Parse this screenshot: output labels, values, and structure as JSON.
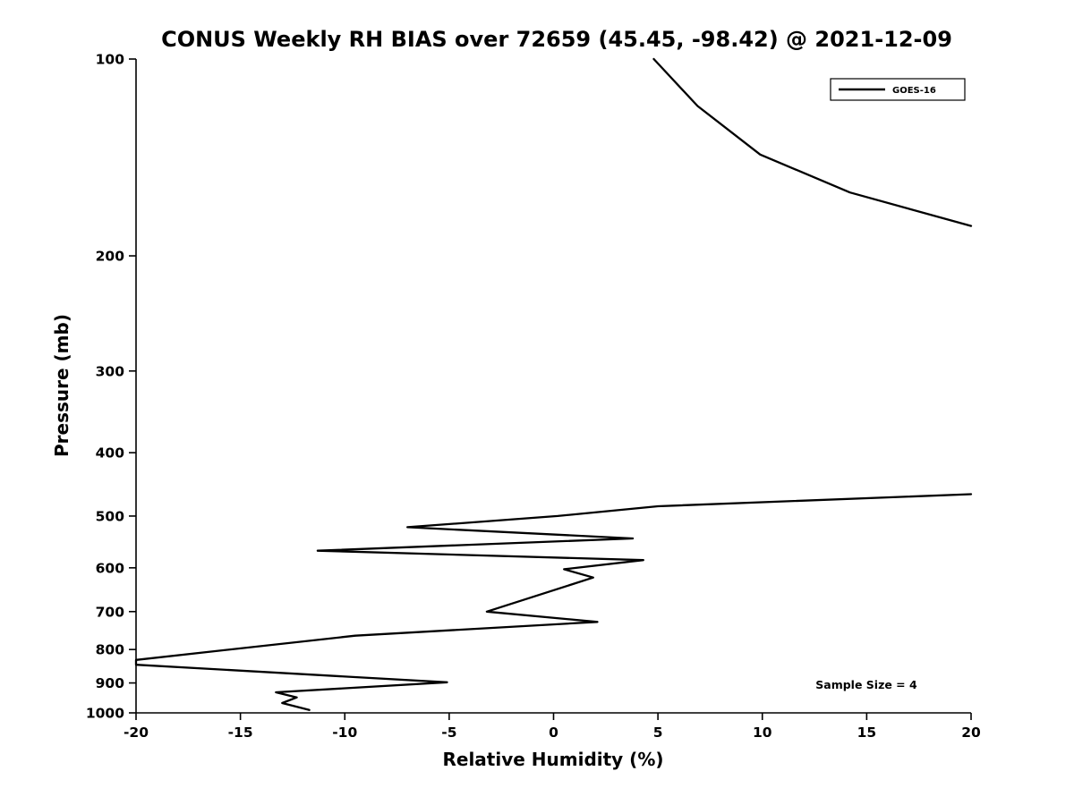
{
  "chart_data": {
    "type": "line",
    "title": "CONUS Weekly RH BIAS over 72659 (45.45, -98.42) @ 2021-12-09",
    "xlabel": "Relative Humidity (%)",
    "ylabel": "Pressure (mb)",
    "xlim": [
      -20,
      20
    ],
    "ylim": [
      100,
      1000
    ],
    "yscale": "log",
    "y_axis_inverted": true,
    "grid": false,
    "xticks": [
      -20,
      -15,
      -10,
      -5,
      0,
      5,
      10,
      15,
      20
    ],
    "yticks": [
      100,
      200,
      300,
      400,
      500,
      600,
      700,
      800,
      900,
      1000
    ],
    "line_color": "#000000",
    "background_color": "#ffffff",
    "legend_position": "top-right",
    "annotations": [
      "Sample Size = 4"
    ],
    "series": [
      {
        "name": "GOES-16",
        "segments": [
          [
            [
              4.8,
              100
            ],
            [
              6.9,
              118
            ],
            [
              9.9,
              140
            ],
            [
              14.2,
              160
            ],
            [
              20.0,
              180
            ]
          ],
          [
            [
              20.0,
              463
            ],
            [
              5.0,
              483
            ],
            [
              0.2,
              500
            ],
            [
              -7.0,
              520
            ],
            [
              3.8,
              541
            ],
            [
              -11.3,
              565
            ],
            [
              4.3,
              584
            ],
            [
              0.5,
              603
            ],
            [
              1.9,
              621
            ],
            [
              -3.2,
              700
            ],
            [
              2.1,
              726
            ],
            [
              -9.5,
              762
            ],
            [
              -20.0,
              830
            ],
            [
              -20.0,
              844
            ],
            [
              -5.1,
              898
            ],
            [
              -13.3,
              930
            ],
            [
              -12.3,
              947
            ],
            [
              -13.0,
              966
            ],
            [
              -11.7,
              990
            ]
          ]
        ]
      }
    ]
  }
}
